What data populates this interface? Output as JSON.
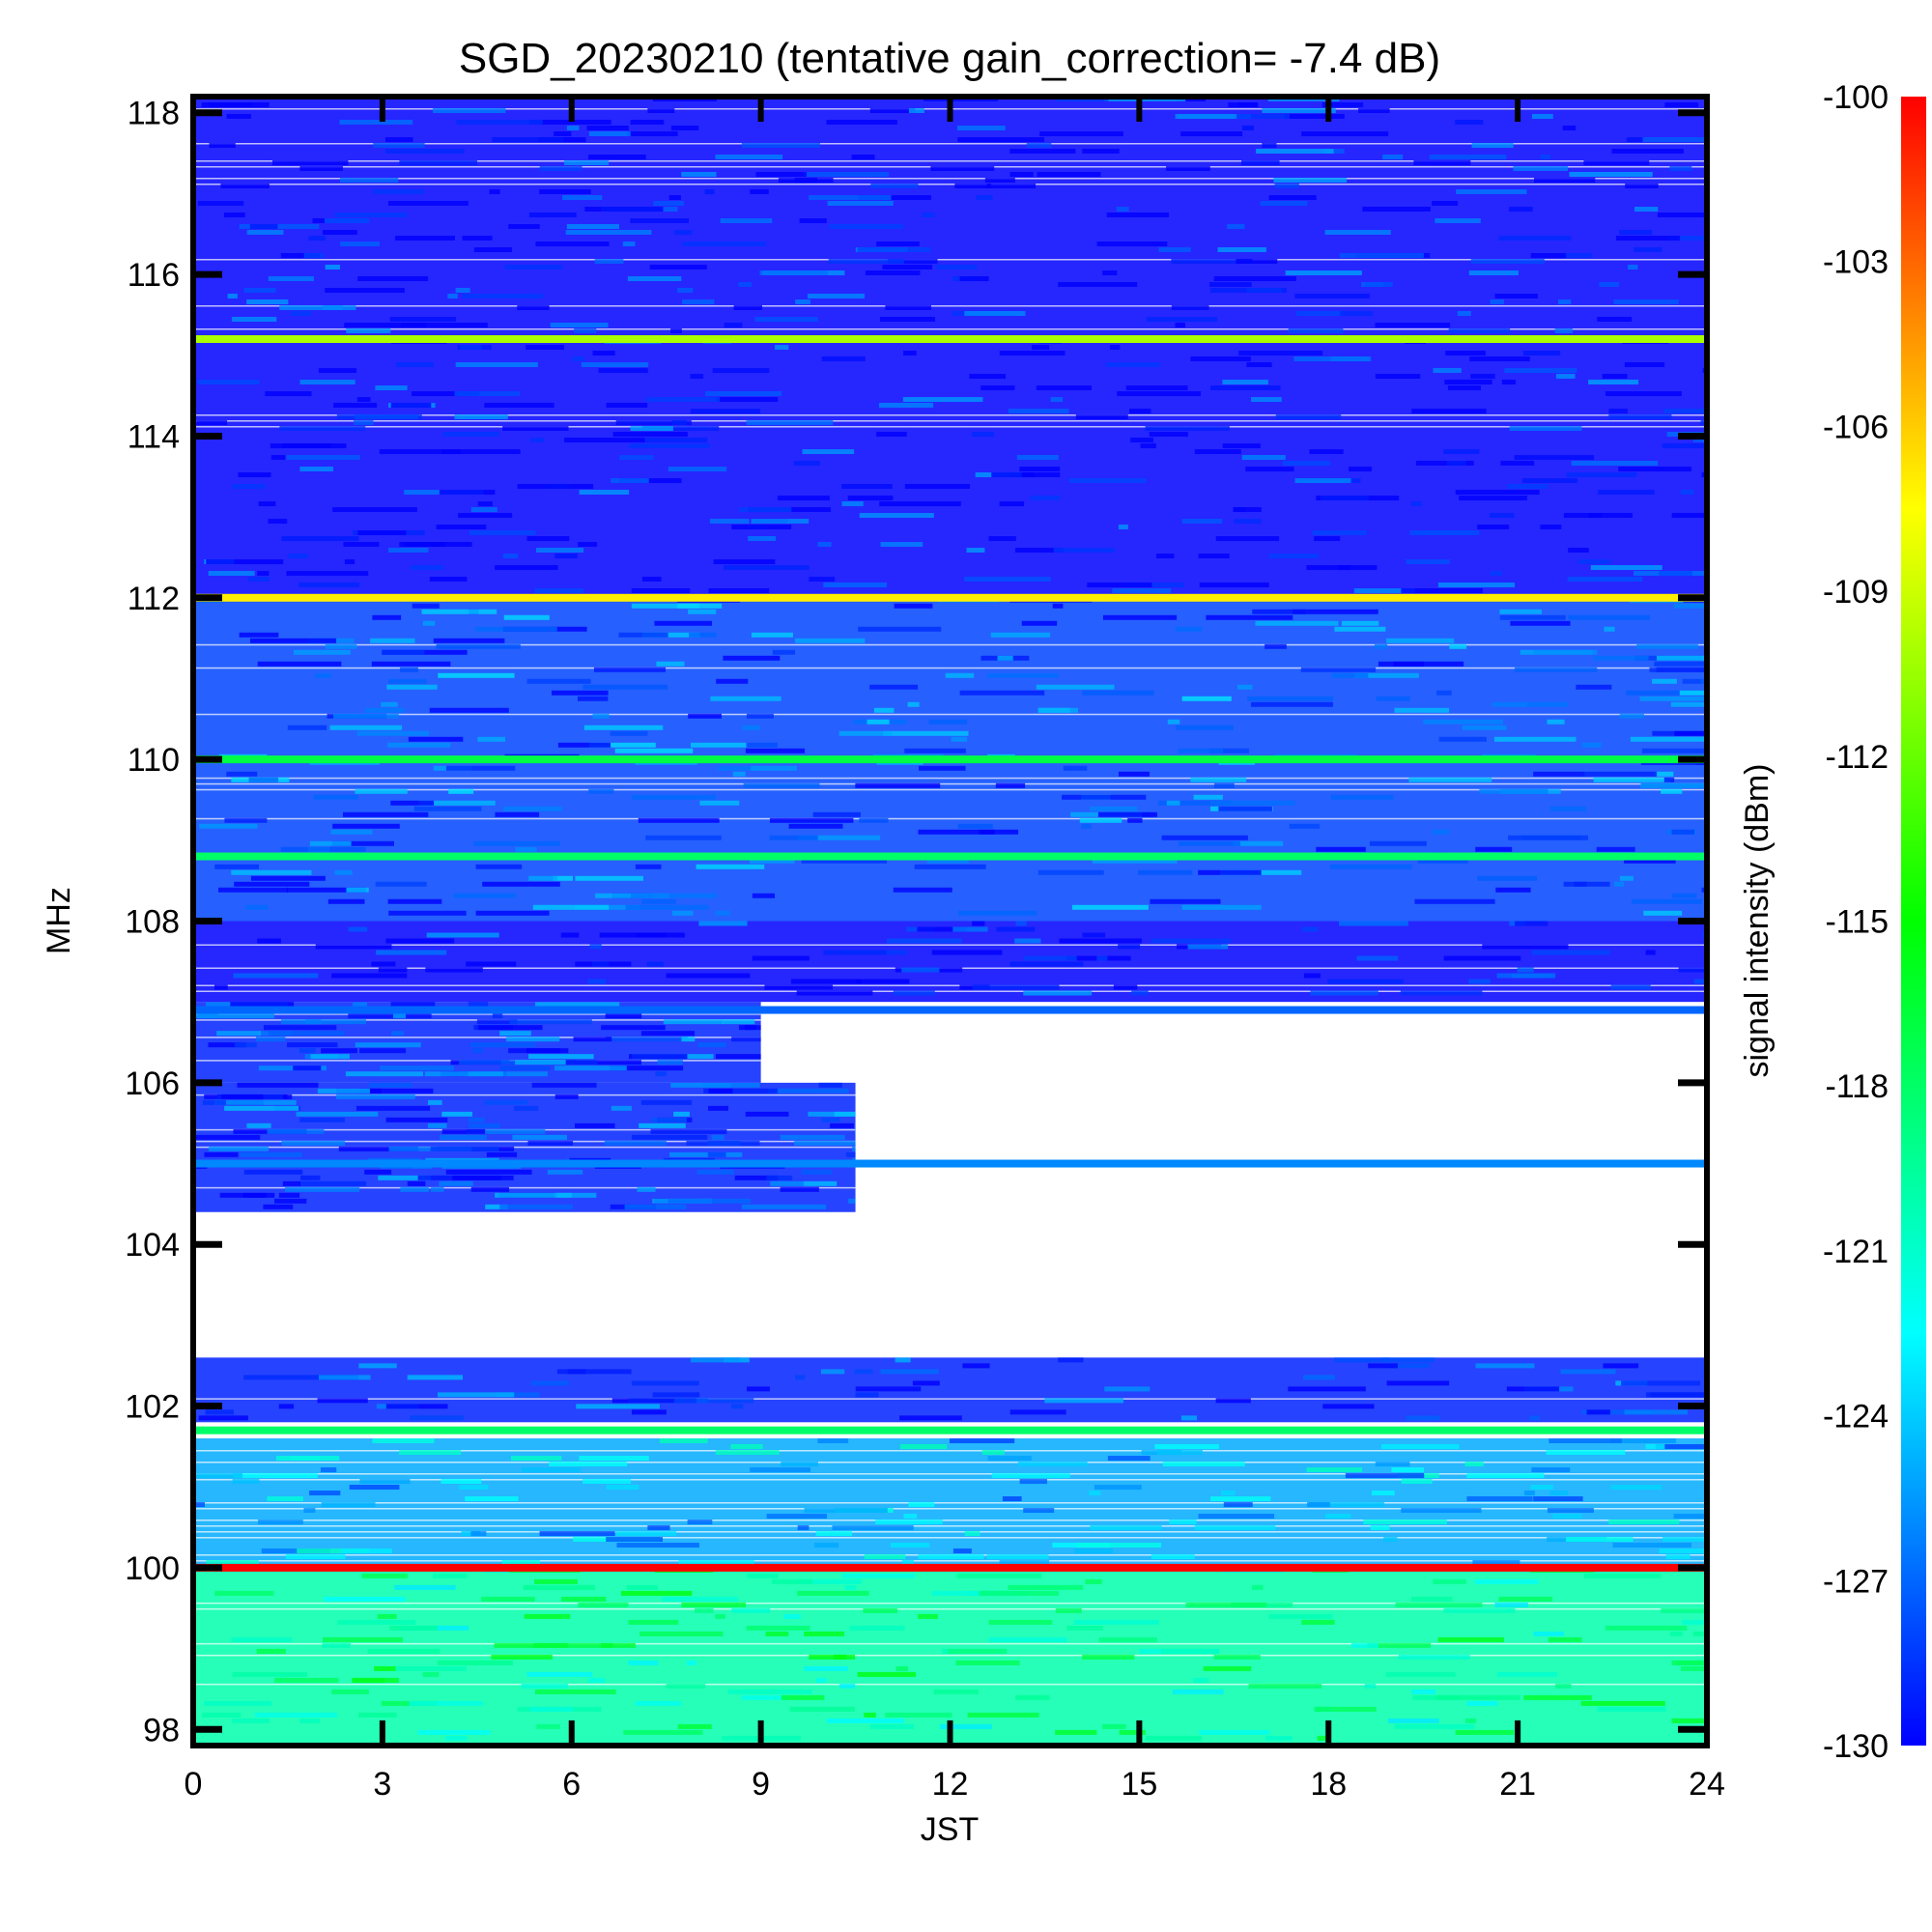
{
  "chart_data": {
    "type": "heatmap",
    "title": "SGD_20230210 (tentative gain_correction= -7.4 dB)",
    "xlabel": "JST",
    "ylabel": "MHz",
    "colorbar_label": "signal intensity (dBm)",
    "xlim": [
      0,
      24
    ],
    "ylim": [
      97.8,
      118.2
    ],
    "clim": [
      -130,
      -100
    ],
    "x_ticks": [
      "0",
      "3",
      "6",
      "9",
      "12",
      "15",
      "18",
      "21",
      "24"
    ],
    "x_tick_values": [
      0,
      3,
      6,
      9,
      12,
      15,
      18,
      21,
      24
    ],
    "y_ticks": [
      "98",
      "100",
      "102",
      "104",
      "106",
      "108",
      "110",
      "112",
      "114",
      "116",
      "118"
    ],
    "y_tick_values": [
      98,
      100,
      102,
      104,
      106,
      108,
      110,
      112,
      114,
      116,
      118
    ],
    "colorbar_ticks": [
      "-100",
      "-103",
      "-106",
      "-109",
      "-112",
      "-115",
      "-118",
      "-121",
      "-124",
      "-127",
      "-130"
    ],
    "colorbar_tick_values": [
      -100,
      -103,
      -106,
      -109,
      -112,
      -115,
      -118,
      -121,
      -124,
      -127,
      -130
    ],
    "colormap": [
      "#0000ff",
      "#0080ff",
      "#00ffff",
      "#00ff80",
      "#00ff00",
      "#80ff00",
      "#ffff00",
      "#ff8000",
      "#ff0000"
    ],
    "strong_lines": [
      {
        "freq": 100.0,
        "dbm": -100
      },
      {
        "freq": 112.0,
        "dbm": -107
      },
      {
        "freq": 115.2,
        "dbm": -110
      },
      {
        "freq": 110.0,
        "dbm": -117
      },
      {
        "freq": 108.8,
        "dbm": -118
      },
      {
        "freq": 101.7,
        "dbm": -118
      },
      {
        "freq": 105.0,
        "dbm": -126
      },
      {
        "freq": 106.9,
        "dbm": -127
      }
    ],
    "bands": [
      {
        "f0": 97.8,
        "f1": 100.0,
        "t0": 0,
        "t1": 24,
        "dbm": -120
      },
      {
        "f0": 100.0,
        "f1": 101.6,
        "t0": 0,
        "t1": 24,
        "dbm": -125
      },
      {
        "f0": 101.8,
        "f1": 102.6,
        "t0": 0,
        "t1": 24,
        "dbm": -129
      },
      {
        "f0": 104.4,
        "f1": 106.0,
        "t0": 0,
        "t1": 10.5,
        "dbm": -129
      },
      {
        "f0": 106.0,
        "f1": 107.0,
        "t0": 0,
        "t1": 9,
        "dbm": -129
      },
      {
        "f0": 107.0,
        "f1": 108.0,
        "t0": 0,
        "t1": 24,
        "dbm": -130
      },
      {
        "f0": 108.0,
        "f1": 112.0,
        "t0": 0,
        "t1": 24,
        "dbm": -128
      },
      {
        "f0": 112.0,
        "f1": 115.2,
        "t0": 0,
        "t1": 24,
        "dbm": -130
      },
      {
        "f0": 115.2,
        "f1": 118.2,
        "t0": 0,
        "t1": 24,
        "dbm": -130
      }
    ]
  }
}
